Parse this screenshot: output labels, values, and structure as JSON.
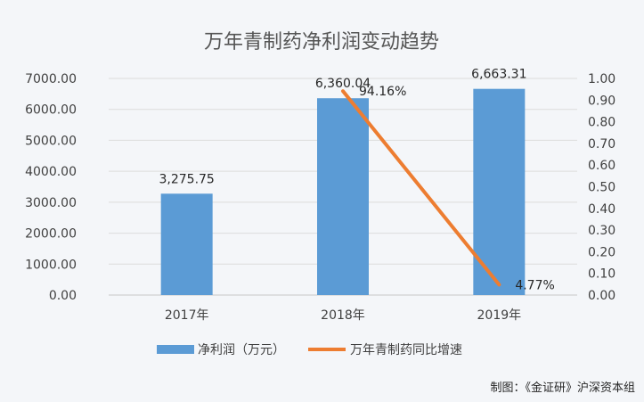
{
  "chart_data": {
    "type": "bar",
    "title": "万年青制药净利润变动趋势",
    "categories": [
      "2017年",
      "2018年",
      "2019年"
    ],
    "series": [
      {
        "name": "净利润（万元）",
        "type": "bar",
        "axis": "left",
        "color": "#5b9bd5",
        "values": [
          3275.75,
          6360.04,
          6663.31
        ],
        "labels": [
          "3,275.75",
          "6,360.04",
          "6,663.31"
        ]
      },
      {
        "name": "万年青制药同比增速",
        "type": "line",
        "axis": "right",
        "color": "#ed7d31",
        "values": [
          null,
          0.9416,
          0.0477
        ],
        "labels": [
          "",
          "94.16%",
          "4.77%"
        ]
      }
    ],
    "y_left": {
      "lim": [
        0,
        7000
      ],
      "ticks": [
        "0.00",
        "1000.00",
        "2000.00",
        "3000.00",
        "4000.00",
        "5000.00",
        "6000.00",
        "7000.00"
      ]
    },
    "y_right": {
      "lim": [
        0,
        1
      ],
      "ticks": [
        "0.00",
        "0.10",
        "0.20",
        "0.30",
        "0.40",
        "0.50",
        "0.60",
        "0.70",
        "0.80",
        "0.90",
        "1.00"
      ]
    },
    "grid": true,
    "legend": "bottom"
  },
  "credit": "制图：《金证研》沪深资本组"
}
